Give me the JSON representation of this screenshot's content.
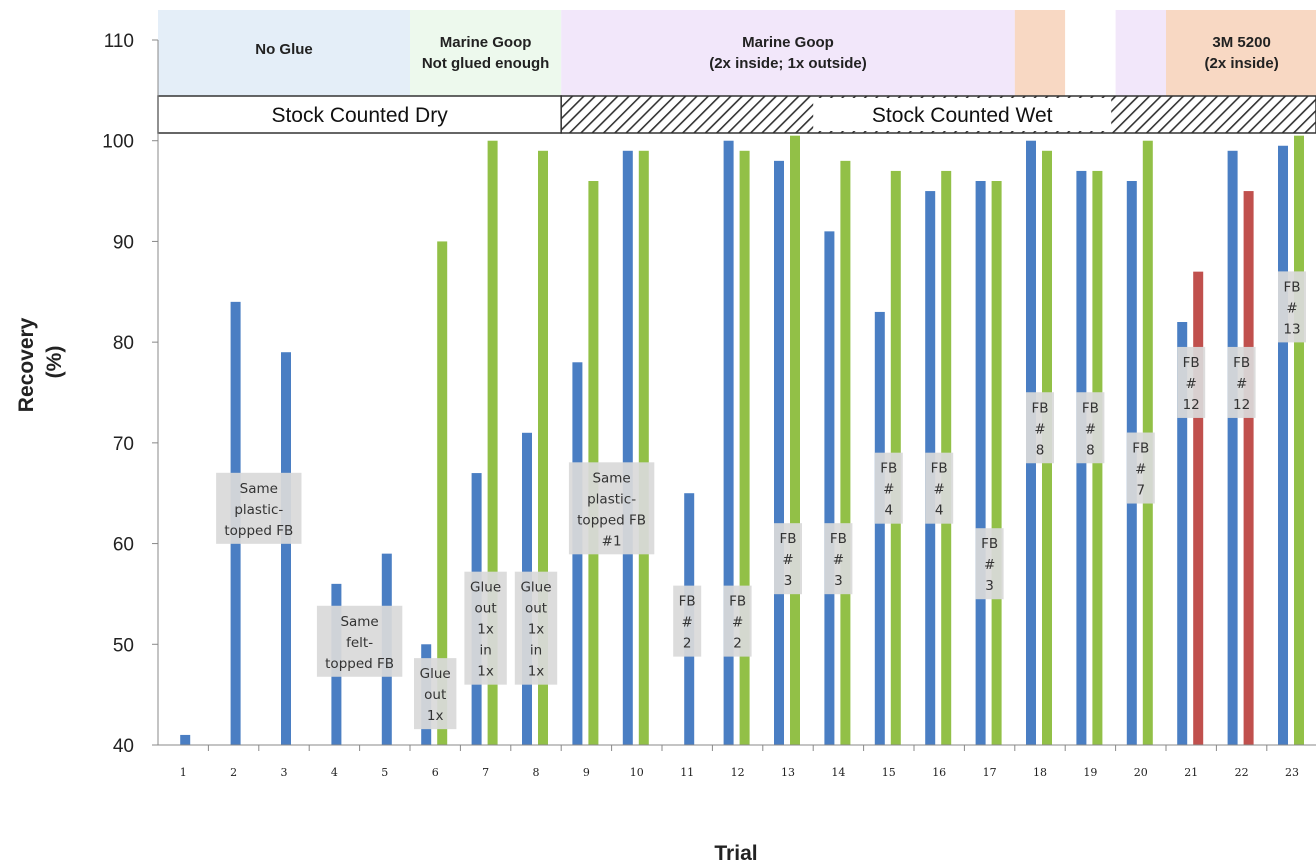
{
  "chart_data": {
    "type": "bar",
    "xlabel": "Trial",
    "ylabel_lines": [
      "Recovery",
      "(%)"
    ],
    "ylim": [
      40,
      110
    ],
    "yticks": [
      40,
      50,
      60,
      70,
      80,
      90,
      100,
      110
    ],
    "categories": [
      "1",
      "2",
      "3",
      "4",
      "5",
      "6",
      "7",
      "8",
      "9",
      "10",
      "11",
      "12",
      "13",
      "14",
      "15",
      "16",
      "17",
      "18",
      "19",
      "20",
      "21",
      "22",
      "23"
    ],
    "series": [
      {
        "color": "#4a7ec3",
        "values": [
          41,
          84,
          79,
          56,
          59,
          50,
          67,
          71,
          78,
          99,
          65,
          100,
          98,
          91,
          83,
          95,
          96,
          100,
          97,
          96,
          82,
          99,
          99.5
        ]
      },
      {
        "color": "#92c047",
        "values": [
          null,
          null,
          null,
          null,
          null,
          90,
          100,
          99,
          96,
          99,
          null,
          99,
          100.5,
          98,
          97,
          97,
          96,
          99,
          97,
          100,
          null,
          null,
          100.5
        ]
      },
      {
        "color": "#c0504d",
        "values": [
          null,
          null,
          null,
          null,
          null,
          null,
          null,
          null,
          null,
          null,
          null,
          null,
          null,
          null,
          null,
          null,
          null,
          null,
          null,
          null,
          87,
          95,
          null
        ]
      }
    ],
    "treatment_bands": [
      {
        "from_trial": 1,
        "to_trial": 5,
        "label_lines": [
          "No Glue"
        ],
        "color": "#e4eef8"
      },
      {
        "from_trial": 5,
        "to_trial": 8,
        "label_lines": [
          "Marine Goop",
          "Not glued enough"
        ],
        "color": "#edf9ed"
      },
      {
        "from_trial": 8,
        "to_trial": 17,
        "label_lines": [
          "Marine Goop",
          "(2x inside; 1x outside)"
        ],
        "color": "#f2e7fa"
      },
      {
        "from_trial": 17,
        "to_trial": 18,
        "label_lines": [],
        "color": "#f8d8c3"
      },
      {
        "from_trial": 18,
        "to_trial": 19,
        "label_lines": [],
        "color": "#ffffff"
      },
      {
        "from_trial": 19,
        "to_trial": 20,
        "label_lines": [],
        "color": "#f2e7fa"
      },
      {
        "from_trial": 20,
        "to_trial": 23,
        "label_lines": [
          "3M 5200",
          "(2x inside)"
        ],
        "color": "#f8d8c3"
      }
    ],
    "stock_bands": [
      {
        "from_trial": 1,
        "to_trial": 8,
        "label": "Stock Counted Dry",
        "fill": "plain"
      },
      {
        "from_trial": 8,
        "to_trial": 23,
        "label": "Stock Counted Wet",
        "fill": "hatched"
      }
    ],
    "annotations": [
      {
        "trial": 2.5,
        "y": 63.5,
        "lines": [
          "Same",
          "plastic-",
          "topped FB"
        ]
      },
      {
        "trial": 4.5,
        "y": 50.3,
        "lines": [
          "Same",
          "felt-",
          "topped FB"
        ]
      },
      {
        "trial": 6,
        "y": 45.1,
        "lines": [
          "Glue",
          "out",
          "1x"
        ]
      },
      {
        "trial": 7,
        "y": 51.6,
        "lines": [
          "Glue",
          "out",
          "1x",
          "in",
          "1x"
        ]
      },
      {
        "trial": 8,
        "y": 51.6,
        "lines": [
          "Glue",
          "out",
          "1x",
          "in",
          "1x"
        ]
      },
      {
        "trial": 9.5,
        "y": 63.5,
        "lines": [
          "Same",
          "plastic-",
          "topped FB",
          "#1"
        ]
      },
      {
        "trial": 11,
        "y": 52.3,
        "lines": [
          "FB",
          "#",
          "2"
        ]
      },
      {
        "trial": 12,
        "y": 52.3,
        "lines": [
          "FB",
          "#",
          "2"
        ]
      },
      {
        "trial": 13,
        "y": 58.5,
        "lines": [
          "FB",
          "#",
          "3"
        ]
      },
      {
        "trial": 14,
        "y": 58.5,
        "lines": [
          "FB",
          "#",
          "3"
        ]
      },
      {
        "trial": 15,
        "y": 65.5,
        "lines": [
          "FB",
          "#",
          "4"
        ]
      },
      {
        "trial": 16,
        "y": 65.5,
        "lines": [
          "FB",
          "#",
          "4"
        ]
      },
      {
        "trial": 17,
        "y": 58.0,
        "lines": [
          "FB",
          "#",
          "3"
        ]
      },
      {
        "trial": 18,
        "y": 71.5,
        "lines": [
          "FB",
          "#",
          "8"
        ]
      },
      {
        "trial": 19,
        "y": 71.5,
        "lines": [
          "FB",
          "#",
          "8"
        ]
      },
      {
        "trial": 20,
        "y": 67.5,
        "lines": [
          "FB",
          "#",
          "7"
        ]
      },
      {
        "trial": 21,
        "y": 76.0,
        "lines": [
          "FB",
          "#",
          "12"
        ]
      },
      {
        "trial": 22,
        "y": 76.0,
        "lines": [
          "FB",
          "#",
          "12"
        ]
      },
      {
        "trial": 23,
        "y": 83.5,
        "lines": [
          "FB",
          "#",
          "13"
        ]
      }
    ]
  }
}
